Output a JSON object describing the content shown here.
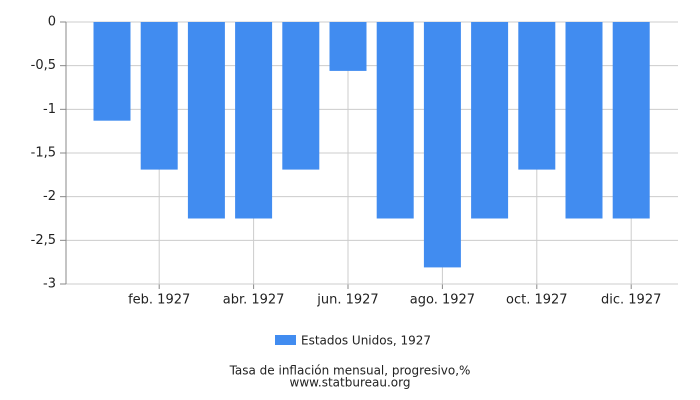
{
  "chart_data": {
    "type": "bar",
    "title": "Tasa de inflación mensual, progresivo,%",
    "subtitle": "www.statbureau.org",
    "categories": [
      null,
      "feb. 1927",
      null,
      "abr. 1927",
      null,
      "jun. 1927",
      null,
      "ago. 1927",
      null,
      "oct. 1927",
      null,
      "dic. 1927"
    ],
    "series": [
      {
        "name": "Estados Unidos, 1927",
        "color": "#418cf0",
        "values": [
          -1.13,
          -1.69,
          -2.25,
          -2.25,
          -1.69,
          -0.56,
          -2.25,
          -2.81,
          -2.25,
          -1.69,
          -2.25,
          -2.25
        ]
      }
    ],
    "ylim": [
      -3,
      0
    ],
    "yticks": [
      0,
      {
        "value": -0.5,
        "label": "-0,5"
      },
      -1,
      {
        "value": -1.5,
        "label": "-1,5"
      },
      -2,
      {
        "value": -2.5,
        "label": "-2,5"
      },
      -3
    ],
    "grid": true
  }
}
